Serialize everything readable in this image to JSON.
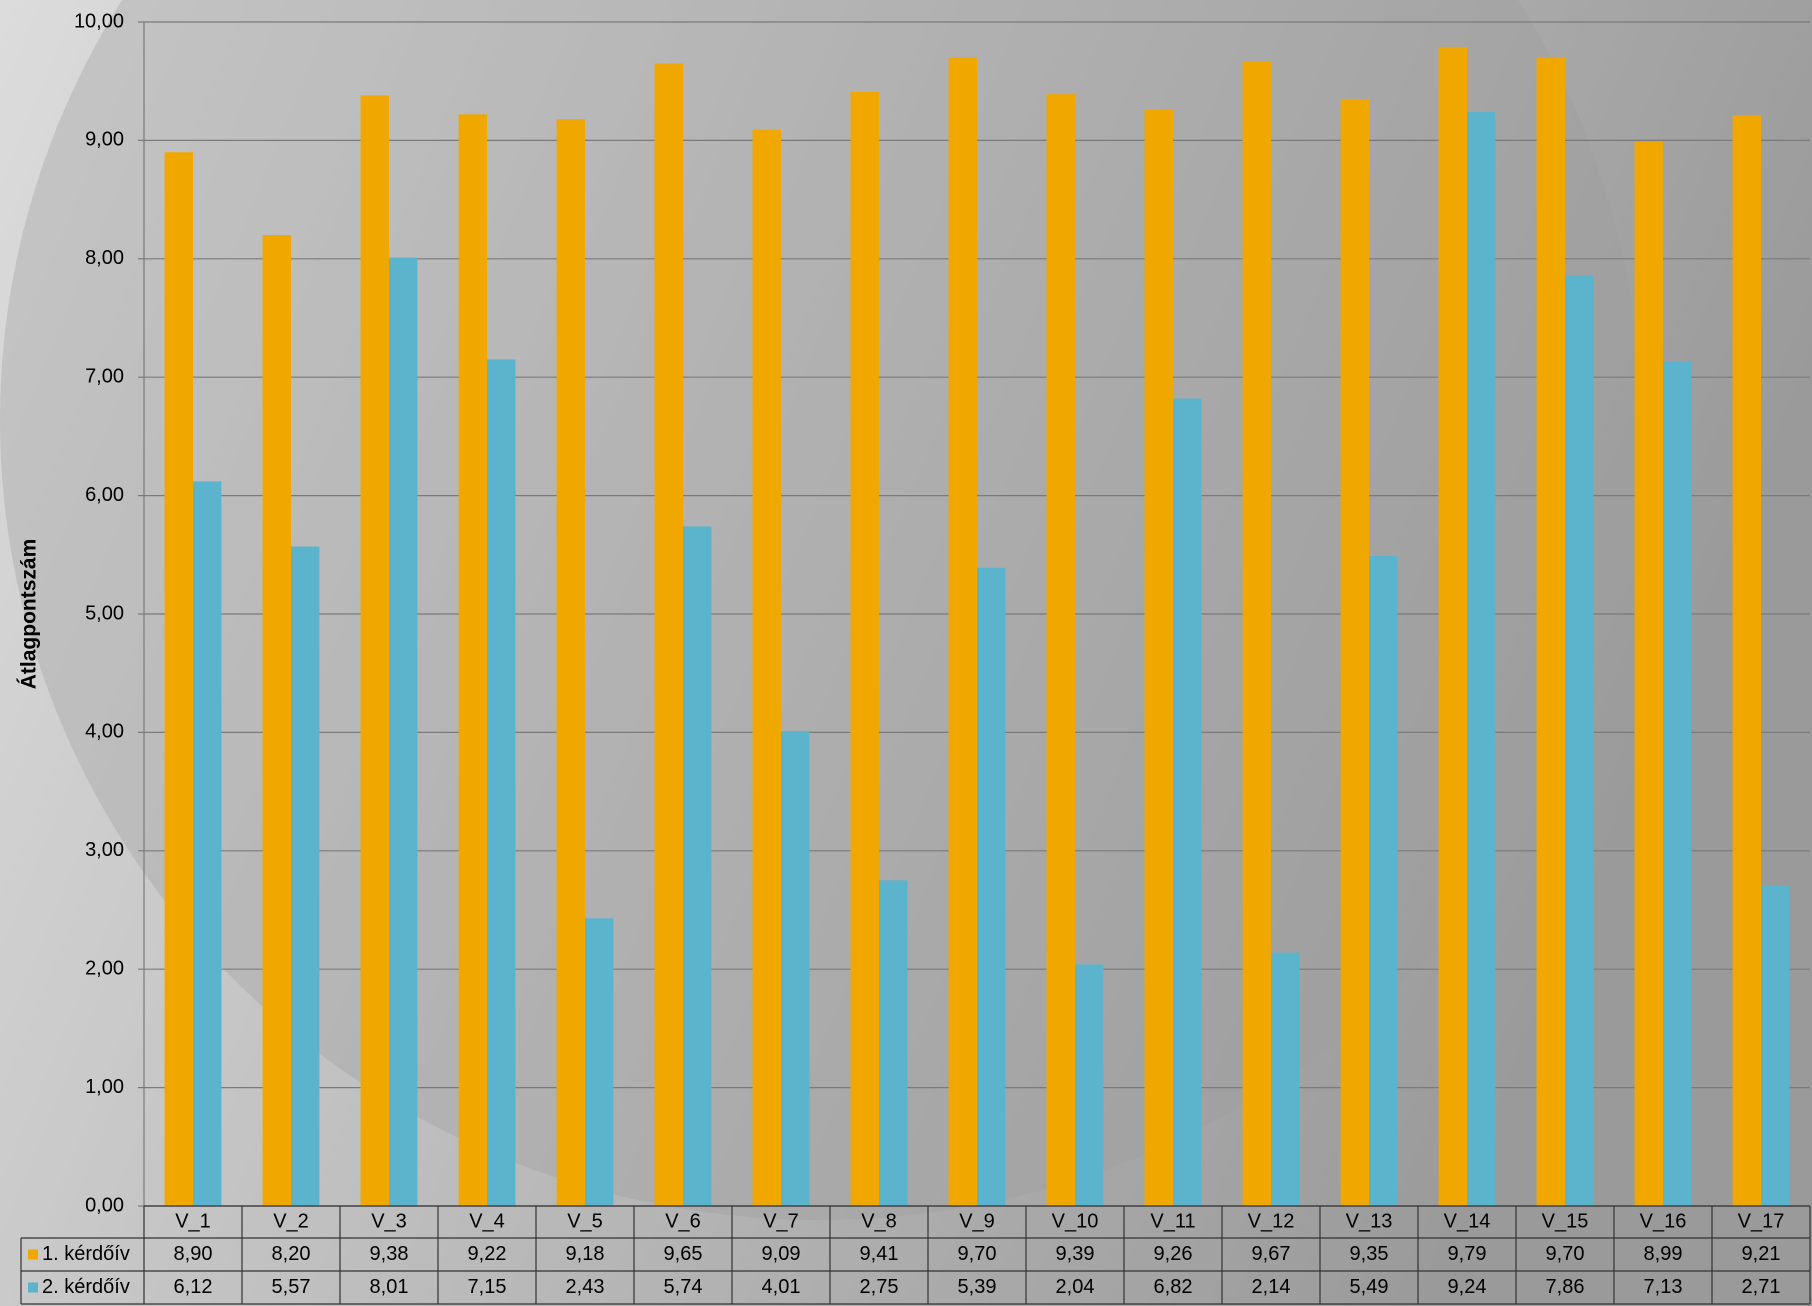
{
  "chart_data": {
    "type": "bar",
    "y_label": "Átlagpontszám",
    "categories": [
      "V_1",
      "V_2",
      "V_3",
      "V_4",
      "V_5",
      "V_6",
      "V_7",
      "V_8",
      "V_9",
      "V_10",
      "V_11",
      "V_12",
      "V_13",
      "V_14",
      "V_15",
      "V_16",
      "V_17"
    ],
    "series": [
      {
        "name": "1. kérdőív",
        "color": "#f0a800",
        "values": [
          8.9,
          8.2,
          9.38,
          9.22,
          9.18,
          9.65,
          9.09,
          9.41,
          9.7,
          9.39,
          9.26,
          9.67,
          9.35,
          9.79,
          9.7,
          8.99,
          9.21
        ],
        "value_labels": [
          "8,90",
          "8,20",
          "9,38",
          "9,22",
          "9,18",
          "9,65",
          "9,09",
          "9,41",
          "9,70",
          "9,39",
          "9,26",
          "9,67",
          "9,35",
          "9,79",
          "9,70",
          "8,99",
          "9,21"
        ]
      },
      {
        "name": "2. kérdőív",
        "color": "#5bb4cc",
        "values": [
          6.12,
          5.57,
          8.01,
          7.15,
          2.43,
          5.74,
          4.01,
          2.75,
          5.39,
          2.04,
          6.82,
          2.14,
          5.49,
          9.24,
          7.86,
          7.13,
          2.71
        ],
        "value_labels": [
          "6,12",
          "5,57",
          "8,01",
          "7,15",
          "2,43",
          "5,74",
          "4,01",
          "2,75",
          "5,39",
          "2,04",
          "6,82",
          "2,14",
          "5,49",
          "9,24",
          "7,86",
          "7,13",
          "2,71"
        ]
      }
    ],
    "ylim": [
      0,
      10
    ],
    "yticks": [
      {
        "value": 0,
        "label": "0,00"
      },
      {
        "value": 1,
        "label": "1,00"
      },
      {
        "value": 2,
        "label": "2,00"
      },
      {
        "value": 3,
        "label": "3,00"
      },
      {
        "value": 4,
        "label": "4,00"
      },
      {
        "value": 5,
        "label": "5,00"
      },
      {
        "value": 6,
        "label": "6,00"
      },
      {
        "value": 7,
        "label": "7,00"
      },
      {
        "value": 8,
        "label": "8,00"
      },
      {
        "value": 9,
        "label": "9,00"
      },
      {
        "value": 10,
        "label": "10,00"
      }
    ],
    "grid": true
  }
}
